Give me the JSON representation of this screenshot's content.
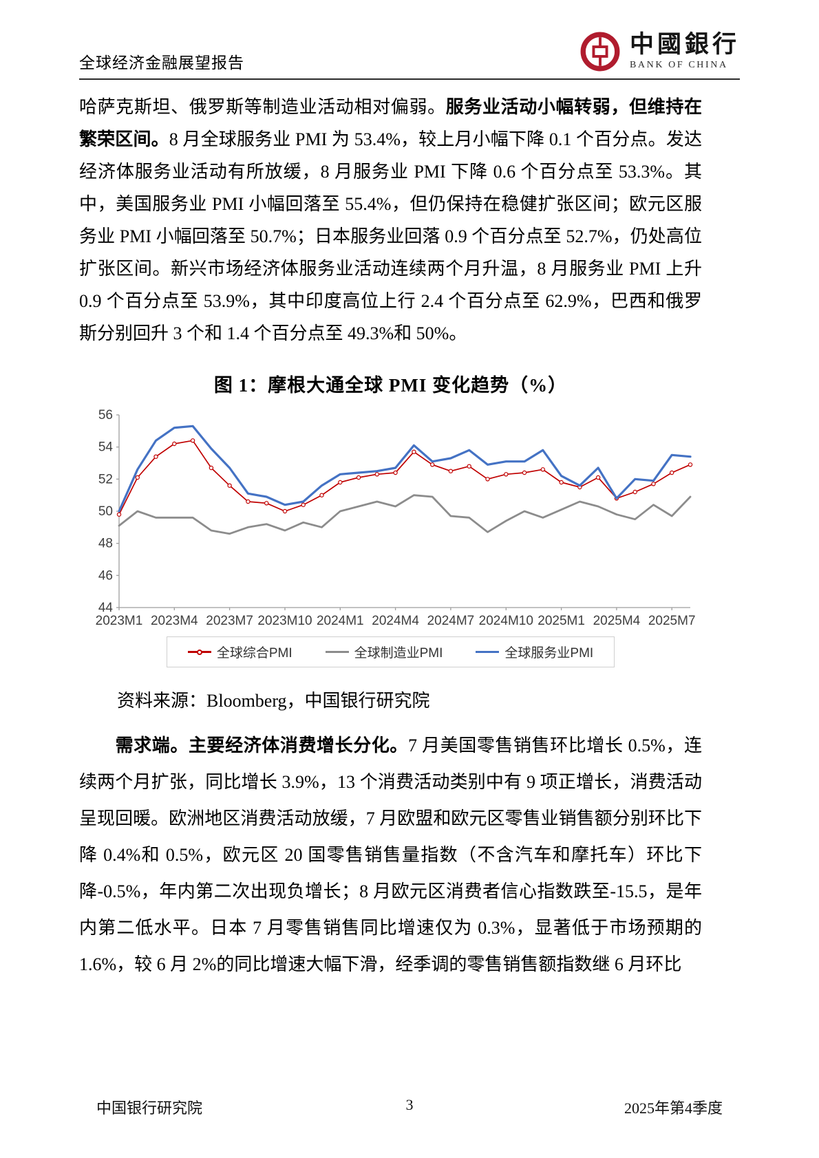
{
  "page": {
    "header": {
      "report_title": "全球经济金融展望报告",
      "logo": {
        "cn_name": "中國銀行",
        "en_name": "BANK OF CHINA",
        "brand_color": "#b01c2e"
      }
    },
    "footer": {
      "left": "中国银行研究院",
      "page_number": "3",
      "right": "2025年第4季度"
    }
  },
  "body": {
    "paragraph1": {
      "run1": "哈萨克斯坦、俄罗斯等制造业活动相对偏弱。",
      "run2_bold": "服务业活动小幅转弱，但维持在繁荣区间。",
      "run3": "8 月全球服务业 PMI 为 53.4%，较上月小幅下降 0.1 个百分点。发达经济体服务业活动有所放缓，8 月服务业 PMI 下降 0.6 个百分点至 53.3%。其中，美国服务业 PMI 小幅回落至 55.4%，但仍保持在稳健扩张区间；欧元区服务业 PMI 小幅回落至 50.7%；日本服务业回落 0.9 个百分点至 52.7%，仍处高位扩张区间。新兴市场经济体服务业活动连续两个月升温，8 月服务业 PMI 上升 0.9 个百分点至 53.9%，其中印度高位上行 2.4 个百分点至 62.9%，巴西和俄罗斯分别回升 3 个和 1.4 个百分点至 49.3%和 50%。"
    },
    "figure": {
      "title": "图 1：摩根大通全球 PMI 变化趋势（%）",
      "source": "资料来源：Bloomberg，中国银行研究院"
    },
    "paragraph2": {
      "run1_bold": "需求端。主要经济体消费增长分化。",
      "run2": "7 月美国零售销售环比增长 0.5%，连续两个月扩张，同比增长 3.9%，13 个消费活动类别中有 9 项正增长，消费活动呈现回暖。欧洲地区消费活动放缓，7 月欧盟和欧元区零售业销售额分别环比下降 0.4%和 0.5%，欧元区 20 国零售销售量指数（不含汽车和摩托车）环比下降-0.5%，年内第二次出现负增长；8 月欧元区消费者信心指数跌至-15.5，是年内第二低水平。日本 7 月零售销售同比增速仅为 0.3%，显著低于市场预期的 1.6%，较 6 月 2%的同比增速大幅下滑，经季调的零售销售额指数继 6 月环比"
    }
  },
  "chart_data": {
    "type": "line",
    "title": "图 1：摩根大通全球 PMI 变化趋势（%）",
    "grid": false,
    "legend_position": "bottom",
    "ylim": [
      44,
      56
    ],
    "y_ticks": [
      44,
      46,
      48,
      50,
      52,
      54,
      56
    ],
    "x": [
      "2023M1",
      "2023M2",
      "2023M3",
      "2023M4",
      "2023M5",
      "2023M6",
      "2023M7",
      "2023M8",
      "2023M9",
      "2023M10",
      "2023M11",
      "2023M12",
      "2024M1",
      "2024M2",
      "2024M3",
      "2024M4",
      "2024M5",
      "2024M6",
      "2024M7",
      "2024M8",
      "2024M9",
      "2024M10",
      "2024M11",
      "2024M12",
      "2025M1",
      "2025M2",
      "2025M3",
      "2025M4",
      "2025M5",
      "2025M6",
      "2025M7",
      "2025M8"
    ],
    "x_tick_labels": [
      "2023M1",
      "2023M4",
      "2023M7",
      "2023M10",
      "2024M1",
      "2024M4",
      "2024M7",
      "2024M10",
      "2025M1",
      "2025M4",
      "2025M7"
    ],
    "series": [
      {
        "name": "全球综合PMI",
        "color": "#c00000",
        "marker": true,
        "values": [
          49.8,
          52.1,
          53.4,
          54.2,
          54.4,
          52.7,
          51.6,
          50.6,
          50.5,
          50.0,
          50.4,
          51.0,
          51.8,
          52.1,
          52.3,
          52.4,
          53.7,
          52.9,
          52.5,
          52.8,
          52.0,
          52.3,
          52.4,
          52.6,
          51.8,
          51.5,
          52.1,
          50.8,
          51.2,
          51.7,
          52.4,
          52.9
        ]
      },
      {
        "name": "全球制造业PMI",
        "color": "#8c8c8c",
        "marker": false,
        "values": [
          49.1,
          50.0,
          49.6,
          49.6,
          49.6,
          48.8,
          48.6,
          49.0,
          49.2,
          48.8,
          49.3,
          49.0,
          50.0,
          50.3,
          50.6,
          50.3,
          51.0,
          50.9,
          49.7,
          49.6,
          48.7,
          49.4,
          50.0,
          49.6,
          50.1,
          50.6,
          50.3,
          49.8,
          49.5,
          50.4,
          49.7,
          50.9
        ]
      },
      {
        "name": "全球服务业PMI",
        "color": "#4472c4",
        "marker": false,
        "values": [
          50.0,
          52.6,
          54.4,
          55.2,
          55.3,
          53.9,
          52.7,
          51.1,
          50.9,
          50.4,
          50.6,
          51.6,
          52.3,
          52.4,
          52.5,
          52.7,
          54.1,
          53.1,
          53.3,
          53.8,
          52.9,
          53.1,
          53.1,
          53.8,
          52.2,
          51.6,
          52.7,
          50.8,
          52.0,
          51.9,
          53.5,
          53.4
        ]
      }
    ]
  }
}
